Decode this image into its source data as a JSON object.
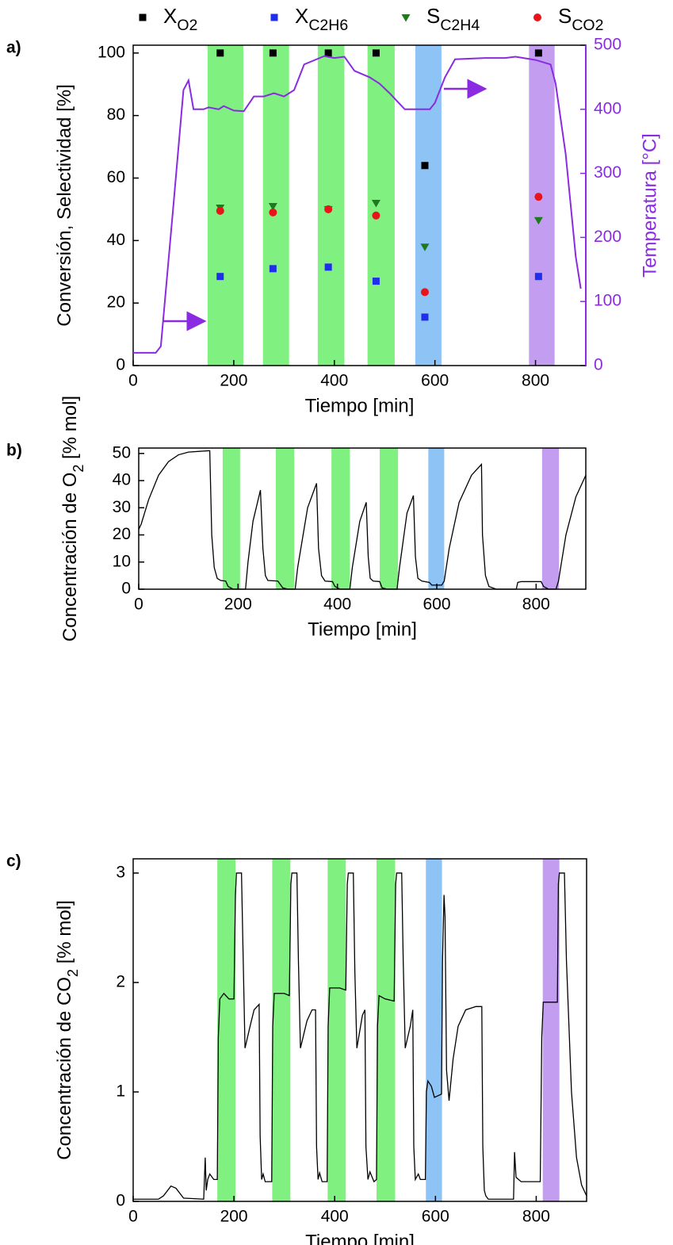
{
  "chart_data": [
    {
      "type": "scatter",
      "panel_label": "a)",
      "xlabel": "Tiempo [min]",
      "ylabel": "Conversión, Selectividad [%]",
      "y2label": "Temperatura [°C]",
      "y2color": "#8a2be2",
      "xlim": [
        0,
        900
      ],
      "ylim": [
        0,
        102.5
      ],
      "y2lim": [
        0,
        500
      ],
      "xticks": [
        0,
        200,
        400,
        600,
        800
      ],
      "yticks": [
        0,
        20,
        40,
        60,
        80,
        100
      ],
      "y2ticks": [
        0,
        100,
        200,
        300,
        400,
        500
      ],
      "legend": "top",
      "regions": [
        {
          "x": [
            148,
            219
          ],
          "color": "#80f080"
        },
        {
          "x": [
            258,
            310
          ],
          "color": "#80f080"
        },
        {
          "x": [
            367,
            420
          ],
          "color": "#80f080"
        },
        {
          "x": [
            466,
            520
          ],
          "color": "#80f080"
        },
        {
          "x": [
            561,
            613
          ],
          "color": "#8ec3f5"
        },
        {
          "x": [
            787,
            838
          ],
          "color": "#c39ef0"
        }
      ],
      "series": [
        {
          "name": "XO2",
          "type": "scatter",
          "marker": "square",
          "color": "#000000",
          "x": [
            173,
            278,
            388,
            483,
            580,
            806
          ],
          "values": [
            100,
            100,
            100,
            100,
            64,
            100
          ]
        },
        {
          "name": "XC2H6",
          "type": "scatter",
          "marker": "square",
          "color": "#1f2ee8",
          "x": [
            173,
            278,
            388,
            483,
            580,
            806
          ],
          "values": [
            28.5,
            31,
            31.5,
            27,
            15.5,
            28.5
          ]
        },
        {
          "name": "SC2H4",
          "type": "scatter",
          "marker": "triangle-down",
          "color": "#1e7a1e",
          "x": [
            173,
            278,
            388,
            483,
            580,
            806
          ],
          "values": [
            50.5,
            51,
            50,
            52,
            38,
            46.5
          ]
        },
        {
          "name": "SCO2",
          "type": "scatter",
          "marker": "circle",
          "color": "#e8141a",
          "x": [
            173,
            278,
            388,
            483,
            580,
            806
          ],
          "values": [
            49.5,
            49,
            50,
            48,
            23.5,
            54
          ]
        },
        {
          "type": "line",
          "axis": "y2",
          "color": "#8a2be2",
          "x": [
            0,
            45,
            55,
            80,
            100,
            110,
            120,
            140,
            150,
            170,
            180,
            200,
            220,
            240,
            260,
            280,
            300,
            320,
            340,
            380,
            400,
            420,
            440,
            470,
            490,
            510,
            540,
            570,
            590,
            600,
            620,
            640,
            700,
            740,
            760,
            800,
            830,
            840,
            860,
            880,
            890
          ],
          "values": [
            20,
            20,
            30,
            250,
            430,
            445,
            400,
            400,
            403,
            400,
            405,
            398,
            397,
            420,
            420,
            425,
            420,
            430,
            470,
            483,
            480,
            482,
            460,
            450,
            440,
            425,
            400,
            400,
            400,
            410,
            450,
            478,
            480,
            480,
            482,
            477,
            470,
            440,
            330,
            170,
            120
          ]
        }
      ]
    },
    {
      "type": "line",
      "panel_label": "b)",
      "xlabel": "Tiempo [min]",
      "ylabel": "Concentración de O2  [% mol]",
      "xlim": [
        0,
        900
      ],
      "ylim": [
        0,
        52
      ],
      "xticks": [
        0,
        200,
        400,
        600,
        800
      ],
      "yticks": [
        0,
        10,
        20,
        30,
        40,
        50
      ],
      "regions": [
        {
          "x": [
            169,
            204
          ],
          "color": "#80f080"
        },
        {
          "x": [
            276,
            313
          ],
          "color": "#80f080"
        },
        {
          "x": [
            388,
            425
          ],
          "color": "#80f080"
        },
        {
          "x": [
            485,
            522
          ],
          "color": "#80f080"
        },
        {
          "x": [
            583,
            615
          ],
          "color": "#8ec3f5"
        },
        {
          "x": [
            812,
            846
          ],
          "color": "#c39ef0"
        }
      ],
      "series": [
        {
          "type": "line",
          "color": "#000000",
          "x": [
            0,
            5,
            20,
            40,
            60,
            80,
            100,
            140,
            143,
            147,
            152,
            158,
            165,
            175,
            180,
            190,
            200,
            215,
            220,
            230,
            245,
            250,
            255,
            260,
            280,
            290,
            300,
            315,
            320,
            340,
            358,
            362,
            368,
            375,
            390,
            395,
            405,
            425,
            430,
            445,
            458,
            462,
            466,
            472,
            485,
            490,
            500,
            520,
            525,
            540,
            553,
            557,
            562,
            570,
            585,
            590,
            610,
            615,
            625,
            645,
            670,
            690,
            692,
            698,
            705,
            720,
            760,
            763,
            770,
            810,
            815,
            825,
            840,
            845,
            860,
            880,
            900
          ],
          "values": [
            22,
            24,
            33,
            42,
            47,
            49.5,
            50.5,
            51,
            51,
            20,
            8,
            4,
            3.2,
            3,
            1,
            0,
            0,
            0,
            10,
            25,
            36.5,
            15,
            5,
            3.2,
            3,
            0.5,
            0,
            0,
            8,
            30,
            39,
            15,
            5,
            3,
            2.8,
            1,
            0,
            0,
            8,
            25,
            32,
            12,
            4,
            3,
            2.8,
            0.5,
            0,
            0,
            8,
            28,
            34.5,
            12,
            4,
            3,
            2.5,
            1.5,
            1.5,
            3,
            15,
            32,
            42,
            46,
            20,
            5,
            1,
            0,
            0,
            2.5,
            2.8,
            2.8,
            1,
            0,
            0,
            3,
            20,
            34,
            42
          ]
        }
      ]
    },
    {
      "type": "line",
      "panel_label": "c)",
      "xlabel": "Tiempo [min]",
      "ylabel": "Concentración de CO2 [% mol]",
      "xlim": [
        0,
        900
      ],
      "ylim": [
        0,
        3.13
      ],
      "xticks": [
        0,
        200,
        400,
        600,
        800
      ],
      "yticks": [
        0,
        1,
        2,
        3
      ],
      "regions": [
        {
          "x": [
            167,
            203
          ],
          "color": "#80f080"
        },
        {
          "x": [
            276,
            312
          ],
          "color": "#80f080"
        },
        {
          "x": [
            386,
            422
          ],
          "color": "#80f080"
        },
        {
          "x": [
            483,
            520
          ],
          "color": "#80f080"
        },
        {
          "x": [
            581,
            613
          ],
          "color": "#8ec3f5"
        },
        {
          "x": [
            813,
            846
          ],
          "color": "#c39ef0"
        }
      ],
      "series": [
        {
          "type": "line",
          "color": "#000000",
          "x": [
            0,
            50,
            60,
            75,
            85,
            100,
            140,
            143,
            145,
            148,
            152,
            160,
            167,
            169,
            172,
            180,
            190,
            200,
            203,
            205,
            215,
            218,
            222,
            232,
            240,
            250,
            252,
            255,
            258,
            262,
            275,
            277,
            280,
            300,
            310,
            313,
            315,
            325,
            328,
            332,
            345,
            355,
            362,
            364,
            367,
            370,
            375,
            385,
            387,
            390,
            410,
            422,
            425,
            427,
            437,
            440,
            444,
            455,
            460,
            462,
            466,
            470,
            478,
            483,
            485,
            488,
            500,
            518,
            521,
            523,
            533,
            536,
            540,
            550,
            555,
            557,
            560,
            566,
            570,
            580,
            582,
            585,
            592,
            598,
            612,
            614,
            617,
            619,
            622,
            627,
            635,
            645,
            660,
            680,
            692,
            694,
            697,
            700,
            705,
            755,
            757,
            760,
            770,
            808,
            811,
            814,
            830,
            842,
            844,
            846,
            856,
            860,
            870,
            880,
            890,
            900
          ],
          "values": [
            0.02,
            0.02,
            0.05,
            0.14,
            0.12,
            0.03,
            0.02,
            0.4,
            0.1,
            0.2,
            0.25,
            0.2,
            0.2,
            1.5,
            1.85,
            1.9,
            1.85,
            1.85,
            2.8,
            3,
            3,
            2.3,
            1.4,
            1.6,
            1.75,
            1.8,
            0.6,
            0.2,
            0.25,
            0.18,
            0.18,
            1.6,
            1.9,
            1.9,
            1.88,
            2.9,
            3,
            3,
            2.2,
            1.4,
            1.65,
            1.75,
            1.75,
            0.5,
            0.2,
            0.26,
            0.18,
            0.18,
            1.6,
            1.95,
            1.95,
            1.93,
            2.9,
            3,
            3,
            2.1,
            1.4,
            1.7,
            1.75,
            0.5,
            0.2,
            0.27,
            0.18,
            0.2,
            1.6,
            1.88,
            1.85,
            1.83,
            2.9,
            3,
            3,
            2.2,
            1.4,
            1.6,
            1.75,
            0.5,
            0.2,
            0.25,
            0.2,
            0.2,
            1,
            1.1,
            1.05,
            0.95,
            0.98,
            2.2,
            2.8,
            2.6,
            1.2,
            0.92,
            1.3,
            1.6,
            1.75,
            1.78,
            1.78,
            0.5,
            0.1,
            0.05,
            0.02,
            0.02,
            0.45,
            0.22,
            0.18,
            0.18,
            1.5,
            1.82,
            1.82,
            1.82,
            2.9,
            3,
            3,
            2.2,
            1,
            0.4,
            0.15,
            0.05
          ]
        }
      ]
    }
  ]
}
